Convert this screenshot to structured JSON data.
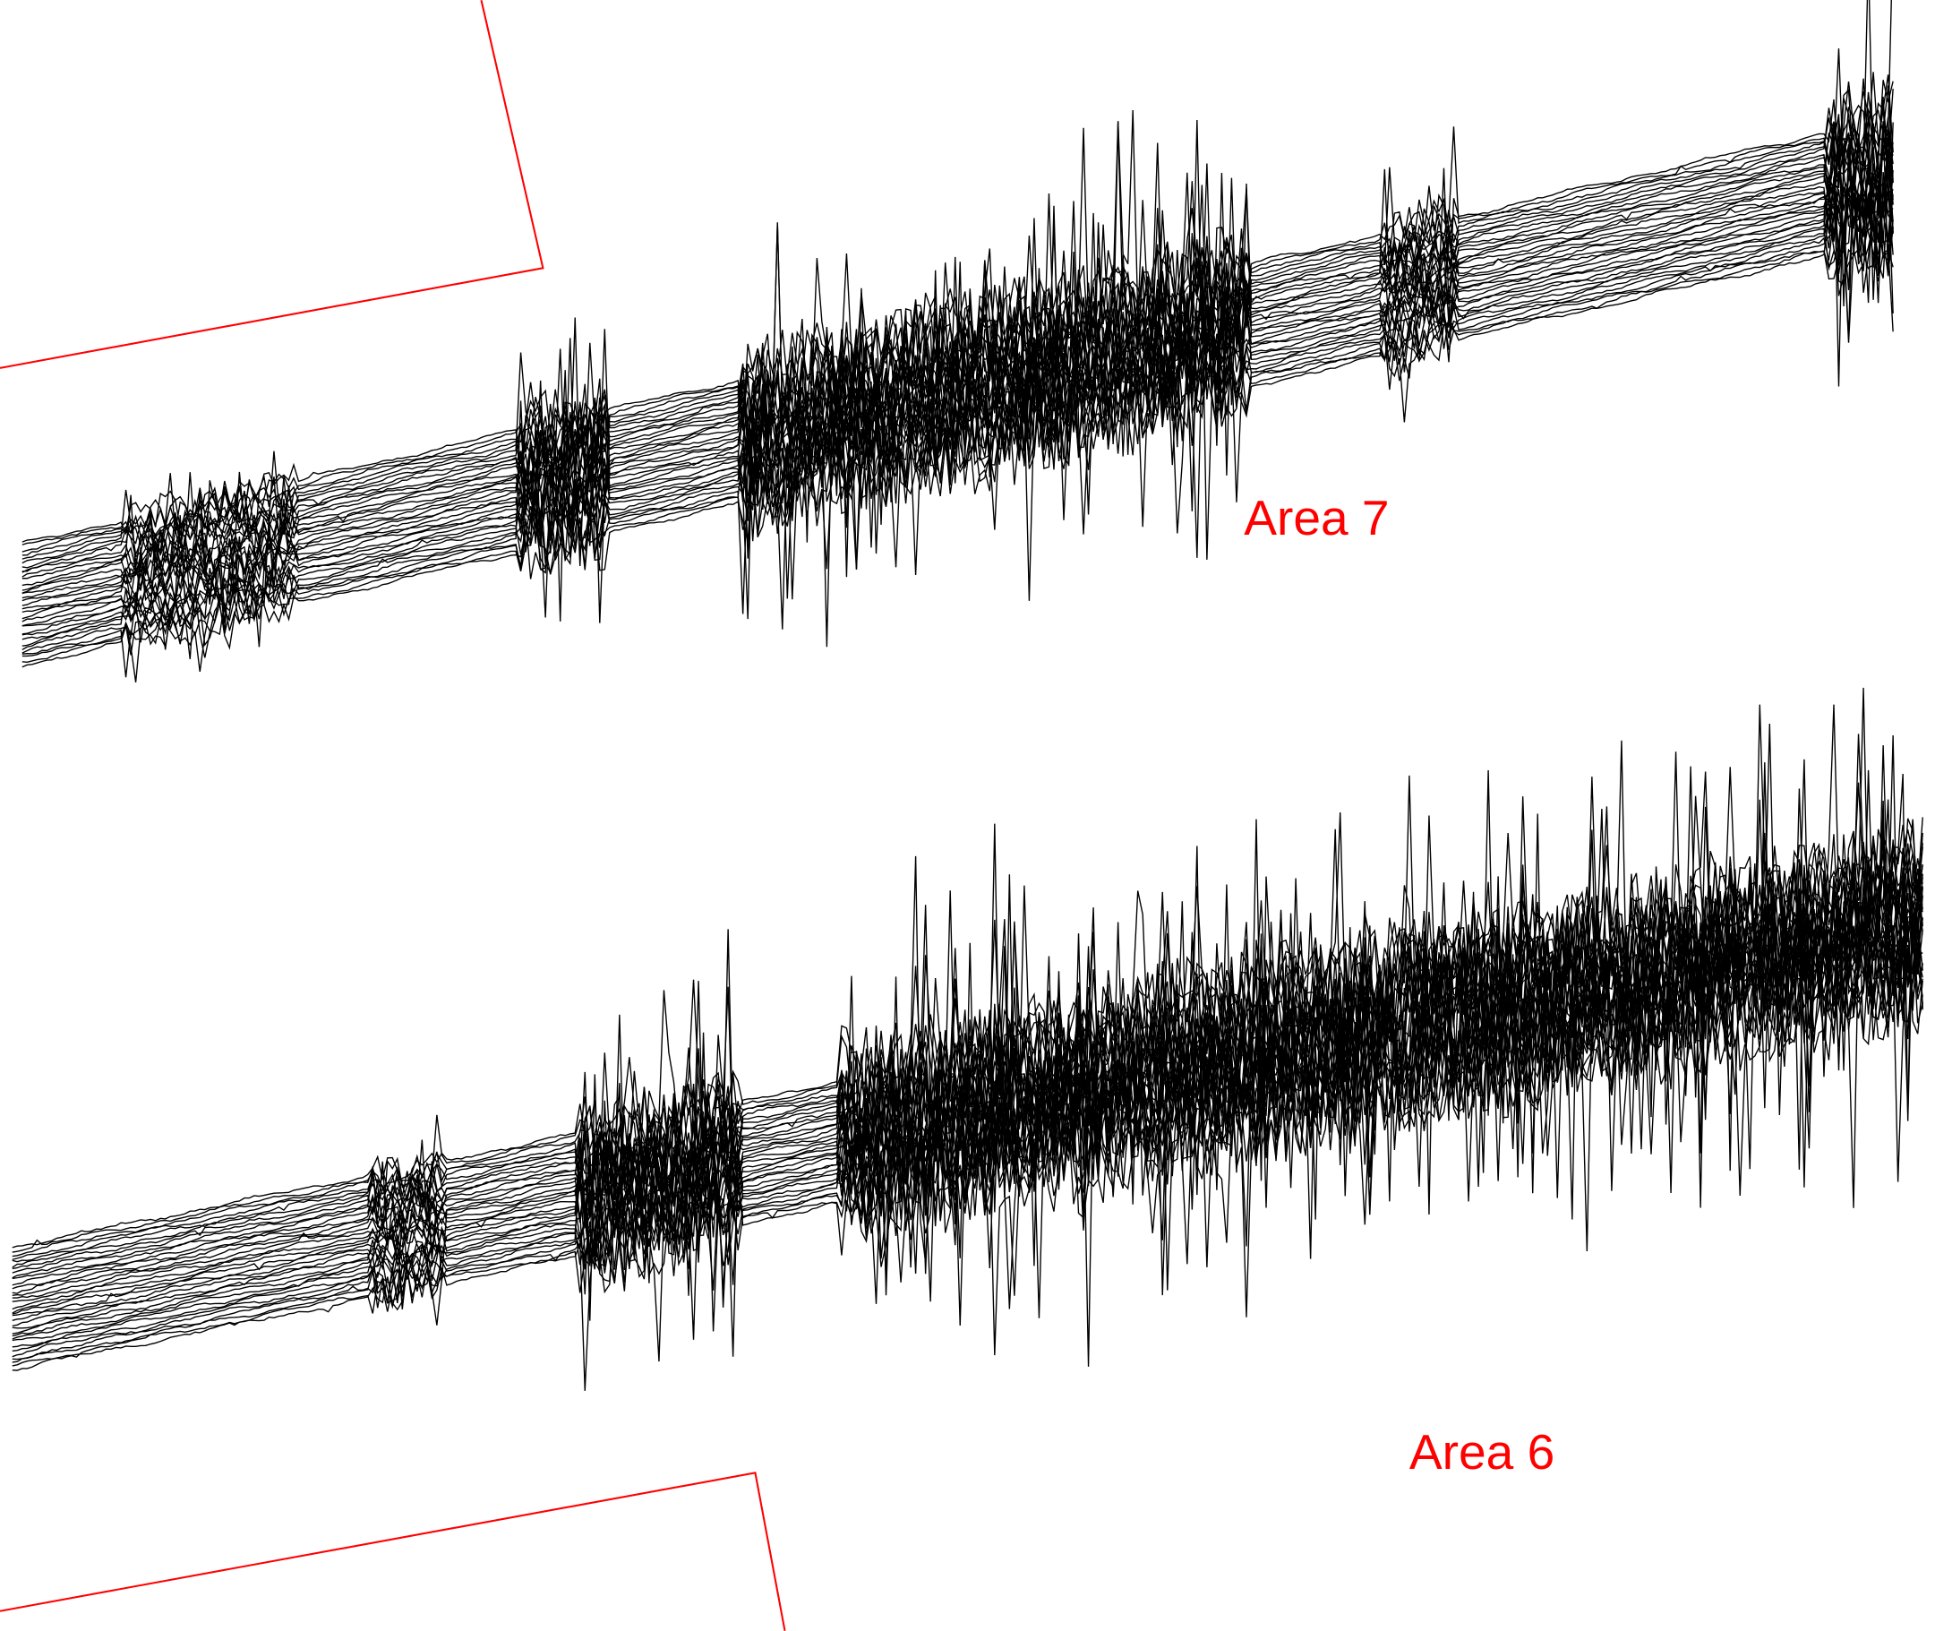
{
  "labels": {
    "top": "Area 7",
    "bottom": "Area 6"
  }
}
